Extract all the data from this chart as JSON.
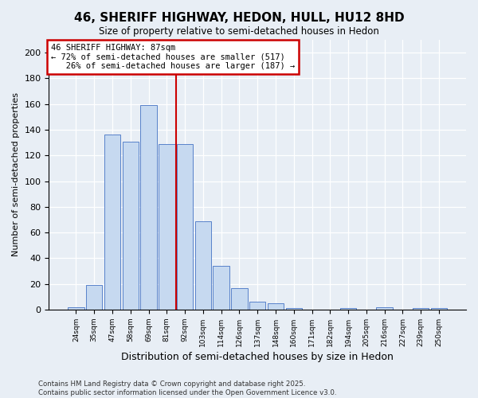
{
  "title": "46, SHERIFF HIGHWAY, HEDON, HULL, HU12 8HD",
  "subtitle": "Size of property relative to semi-detached houses in Hedon",
  "xlabel": "Distribution of semi-detached houses by size in Hedon",
  "ylabel": "Number of semi-detached properties",
  "categories": [
    "24sqm",
    "35sqm",
    "47sqm",
    "58sqm",
    "69sqm",
    "81sqm",
    "92sqm",
    "103sqm",
    "114sqm",
    "126sqm",
    "137sqm",
    "148sqm",
    "160sqm",
    "171sqm",
    "182sqm",
    "194sqm",
    "205sqm",
    "216sqm",
    "227sqm",
    "239sqm",
    "250sqm"
  ],
  "values": [
    2,
    19,
    136,
    131,
    159,
    129,
    129,
    69,
    34,
    17,
    6,
    5,
    1,
    0,
    0,
    1,
    0,
    2,
    0,
    1,
    1
  ],
  "bar_color": "#c6d9f0",
  "bar_edge_color": "#4472c4",
  "subject_label": "46 SHERIFF HIGHWAY: 87sqm",
  "pct_smaller": 72,
  "count_smaller": 517,
  "pct_larger": 26,
  "count_larger": 187,
  "vline_x_index": 5.5,
  "ylim": [
    0,
    210
  ],
  "yticks": [
    0,
    20,
    40,
    60,
    80,
    100,
    120,
    140,
    160,
    180,
    200
  ],
  "annotation_box_color": "#cc0000",
  "footer1": "Contains HM Land Registry data © Crown copyright and database right 2025.",
  "footer2": "Contains public sector information licensed under the Open Government Licence v3.0.",
  "bg_color": "#e8eef5"
}
